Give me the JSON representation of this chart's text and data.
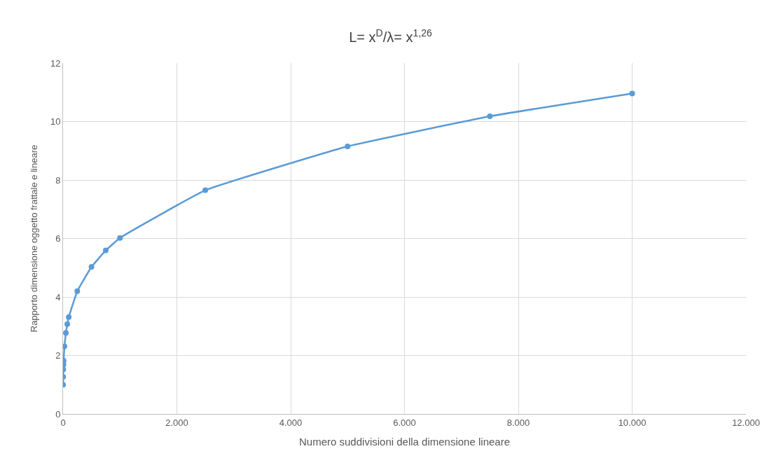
{
  "chart_data": {
    "type": "line",
    "title": "L= x$^{D}$/λ= x$^{1,26}$",
    "xlabel": "Numero suddivisioni della dimensione lineare",
    "ylabel": "Rapporto dimensione oggetto frattale e lineare",
    "x": [
      1,
      2.5,
      5,
      7.5,
      10,
      25,
      50,
      75,
      100,
      250,
      500,
      750,
      1000,
      2500,
      5000,
      7500,
      10000
    ],
    "series": [
      {
        "color": "#5b9bd5",
        "values": [
          1.0,
          1.27,
          1.52,
          1.69,
          1.82,
          2.31,
          2.77,
          3.07,
          3.31,
          4.2,
          5.03,
          5.59,
          6.02,
          7.65,
          9.15,
          10.18,
          10.96
        ]
      }
    ],
    "xlim": [
      0,
      12000
    ],
    "xticks": [
      0,
      {
        "value": 2000,
        "label": "2.000"
      },
      {
        "value": 4000,
        "label": "4.000"
      },
      {
        "value": 6000,
        "label": "6.000"
      },
      {
        "value": 8000,
        "label": "8.000"
      },
      {
        "value": 10000,
        "label": "10.000"
      },
      {
        "value": 12000,
        "label": "12.000"
      }
    ],
    "ylim": [
      0,
      12
    ],
    "yticks": [
      0,
      2,
      4,
      6,
      8,
      10,
      12
    ],
    "grid": true,
    "marker": "circle",
    "line_style": "solid"
  }
}
